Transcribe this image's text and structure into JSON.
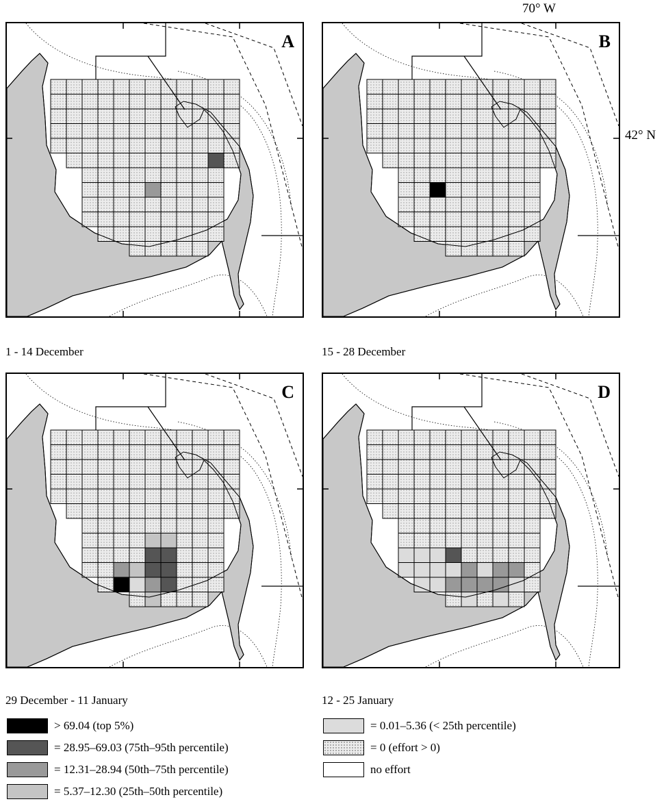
{
  "coords": {
    "lon": "70° W",
    "lat": "42° N"
  },
  "panels": [
    {
      "letter": "A",
      "caption": "1 - 14 December",
      "cells": [
        [
          7,
          6,
          4
        ],
        [
          5,
          10,
          5
        ]
      ]
    },
    {
      "letter": "B",
      "caption": "15 - 28 December",
      "cells": [
        [
          7,
          4,
          6
        ]
      ]
    },
    {
      "letter": "C",
      "caption": "29 December - 11 January",
      "cells": [
        [
          7,
          6,
          3
        ],
        [
          7,
          7,
          3
        ],
        [
          8,
          6,
          5
        ],
        [
          8,
          7,
          5
        ],
        [
          9,
          4,
          4
        ],
        [
          9,
          5,
          3
        ],
        [
          9,
          6,
          5
        ],
        [
          9,
          7,
          5
        ],
        [
          10,
          4,
          6
        ],
        [
          10,
          5,
          2
        ],
        [
          10,
          6,
          4
        ],
        [
          10,
          7,
          5
        ],
        [
          11,
          6,
          3
        ]
      ]
    },
    {
      "letter": "D",
      "caption": "12 - 25 January",
      "cells": [
        [
          8,
          2,
          2
        ],
        [
          8,
          3,
          2
        ],
        [
          8,
          4,
          2
        ],
        [
          8,
          5,
          5
        ],
        [
          9,
          2,
          2
        ],
        [
          9,
          3,
          2
        ],
        [
          9,
          4,
          2
        ],
        [
          9,
          5,
          2
        ],
        [
          9,
          6,
          4
        ],
        [
          9,
          7,
          2
        ],
        [
          9,
          8,
          4
        ],
        [
          9,
          9,
          4
        ],
        [
          10,
          2,
          2
        ],
        [
          10,
          3,
          2
        ],
        [
          10,
          4,
          2
        ],
        [
          10,
          5,
          4
        ],
        [
          10,
          6,
          4
        ],
        [
          10,
          7,
          4
        ],
        [
          10,
          8,
          4
        ],
        [
          10,
          9,
          2
        ],
        [
          11,
          6,
          2
        ],
        [
          11,
          8,
          2
        ]
      ]
    }
  ],
  "legend": [
    {
      "color": "#000000",
      "label": "> 69.04 (top 5%)"
    },
    {
      "color": "#555555",
      "label": "= 28.95–69.03 (75th–95th percentile)"
    },
    {
      "color": "#999999",
      "label": "= 12.31–28.94 (50th–75th percentile)"
    },
    {
      "color": "#c4c4c4",
      "label": "= 5.37–12.30 (25th–50th percentile)"
    },
    {
      "color": "#dcdcdc",
      "label": "= 0.01–5.36 (< 25th percentile)"
    },
    {
      "color": "dots",
      "label": "= 0 (effort > 0)"
    },
    {
      "color": "#ffffff",
      "label": "no effort"
    }
  ]
}
